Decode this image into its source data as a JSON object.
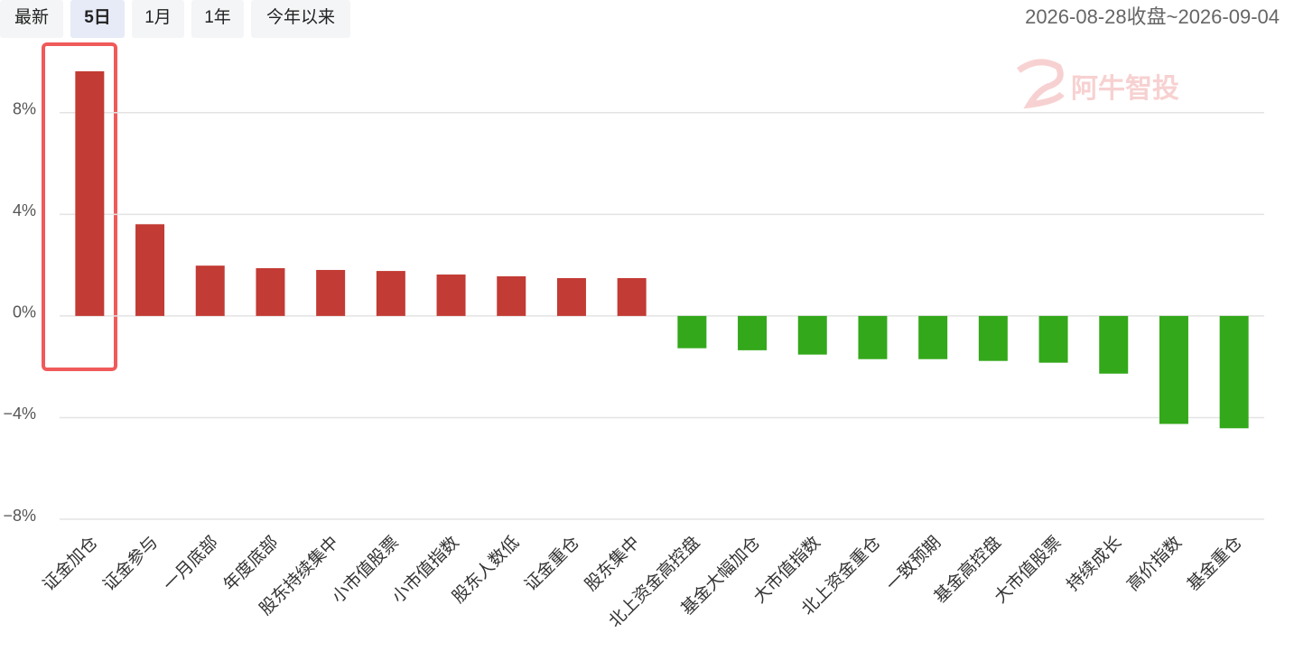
{
  "tabs": [
    "最新",
    "5日",
    "1月",
    "1年",
    "今年以来"
  ],
  "selected_tab": 1,
  "date_range": "2026-08-28收盘~2026-09-04",
  "watermark": "阿牛智投",
  "chart_data": {
    "type": "bar",
    "categories": [
      "证金加仓",
      "证金参与",
      "一月底部",
      "年度底部",
      "股东持续集中",
      "小市值股票",
      "小市值指数",
      "股东人数低",
      "证金重仓",
      "股东集中",
      "北上资金高控盘",
      "基金大幅加仓",
      "大市值指数",
      "北上资金重仓",
      "一致预期",
      "基金高控盘",
      "大市值股票",
      "持续成长",
      "高价指数",
      "基金重仓"
    ],
    "values": [
      9.63,
      3.61,
      1.98,
      1.88,
      1.81,
      1.77,
      1.63,
      1.56,
      1.49,
      1.49,
      -1.27,
      -1.35,
      -1.52,
      -1.7,
      -1.7,
      -1.77,
      -1.84,
      -2.27,
      -4.25,
      -4.42
    ],
    "positive_color": "#c23b34",
    "negative_color": "#33a81a",
    "ylim": [
      -8,
      10
    ],
    "yticks": [
      {
        "value": -8,
        "label": "−8%"
      },
      {
        "value": -4,
        "label": "−4%"
      },
      {
        "value": 0,
        "label": "0%"
      },
      {
        "value": 4,
        "label": "4%"
      },
      {
        "value": 8,
        "label": "8%"
      }
    ],
    "grid": true
  }
}
